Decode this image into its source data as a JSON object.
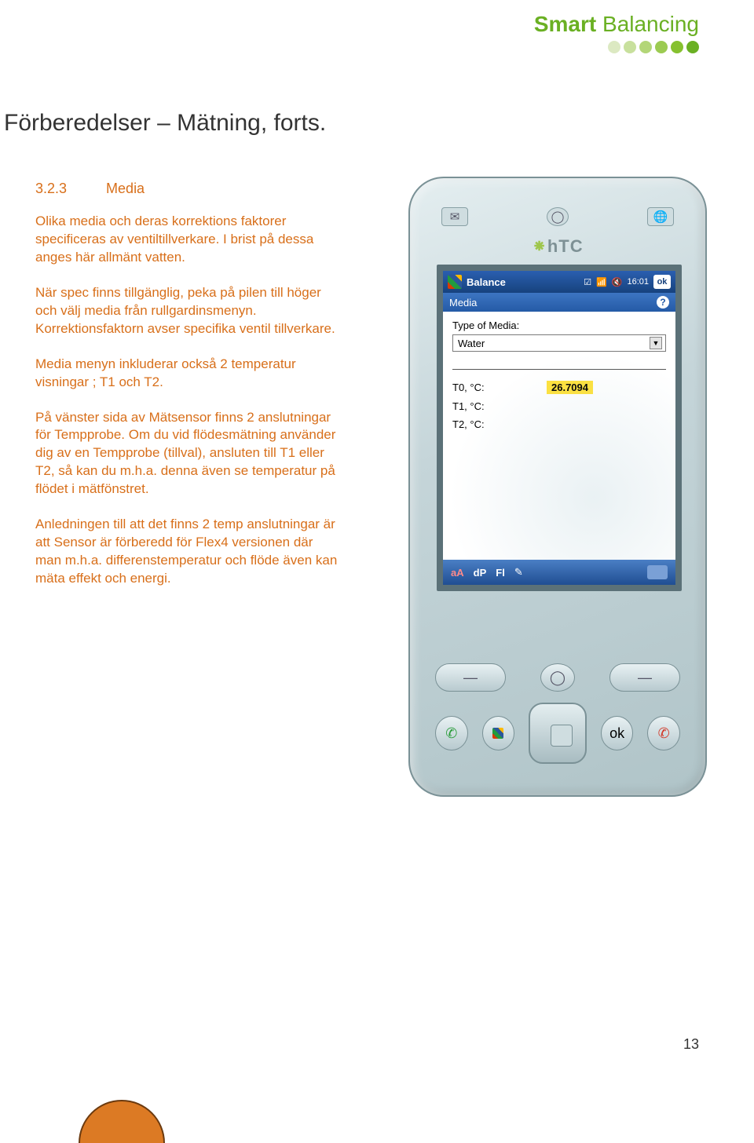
{
  "logo": {
    "word1": "Smart",
    "word2": "Balancing",
    "dot_colors": [
      "#dce9c2",
      "#c8e09d",
      "#b3d678",
      "#9ccb52",
      "#86c12f",
      "#6ab023"
    ]
  },
  "page_title": "Förberedelser – Mätning, forts.",
  "section": {
    "number": "3.2.3",
    "name": "Media"
  },
  "paragraphs": {
    "p1": "Olika media och deras korrektions faktorer specificeras av ventiltillverkare. I brist på dessa anges här allmänt vatten.",
    "p2": "När spec finns tillgänglig, peka på pilen till höger och välj media från rullgardinsmenyn. Korrektionsfaktorn avser specifika ventil tillverkare.",
    "p3": "Media menyn inkluderar också 2 temperatur visningar ; T1 och T2.",
    "p4": "På vänster sida av Mätsensor finns 2 anslutningar för Tempprobe. Om du vid flödesmätning använder dig av en Tempprobe (tillval), ansluten till T1 eller T2, så kan du m.h.a. denna även se temperatur på flödet i mätfönstret.",
    "p5": "Anledningen till att det finns 2 temp anslutningar är att Sensor är förberedd för Flex4 versionen där man m.h.a. differenstemperatur och flöde även kan mäta effekt och energi."
  },
  "device": {
    "brand": "hTC",
    "titlebar": {
      "app": "Balance",
      "time": "16:01",
      "ok": "ok"
    },
    "subbar": {
      "label": "Media"
    },
    "form": {
      "type_label": "Type of Media:",
      "type_value": "Water",
      "rows": [
        {
          "label": "T0, °C:",
          "value": "26.7094",
          "highlight": true
        },
        {
          "label": "T1, °C:",
          "value": "",
          "highlight": false
        },
        {
          "label": "T2, °C:",
          "value": "",
          "highlight": false
        }
      ]
    },
    "menubar": {
      "a": "aA",
      "dp": "dP",
      "fl": "Fl"
    }
  },
  "page_number": "13"
}
